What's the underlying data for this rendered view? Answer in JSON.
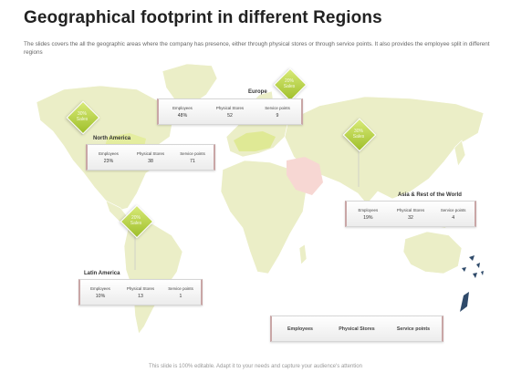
{
  "title": "Geographical footprint in different Regions",
  "subtitle": "The slides covers the all the geographic areas where the company has presence, either through physical stores or through service points. It also provides the employee split in different regions",
  "colors": {
    "map_land": "#ebeec7",
    "map_highlight_green": "#dfe995",
    "map_highlight_pink": "#f7d7d3",
    "badge_green": "#b5d13f"
  },
  "regions": {
    "europe": {
      "name": "Europe",
      "badge_line1": "20%",
      "badge_line2": "Sales",
      "headers": [
        "Employees",
        "Physical Stores",
        "Service points"
      ],
      "values": [
        "48%",
        "52",
        "9"
      ]
    },
    "north_america": {
      "name": "North America",
      "badge_line1": "30%",
      "badge_line2": "Sales",
      "headers": [
        "Employees",
        "Physical Stores",
        "Service points"
      ],
      "values": [
        "23%",
        "38",
        "71"
      ]
    },
    "asia": {
      "name": "Asia & Rest of the World",
      "badge_line1": "30%",
      "badge_line2": "Sales",
      "headers": [
        "Employees",
        "Physical Stores",
        "Service points"
      ],
      "values": [
        "19%",
        "32",
        "4"
      ]
    },
    "latin_america": {
      "name": "Latin America",
      "badge_line1": "20%",
      "badge_line2": "Sales",
      "headers": [
        "Employees",
        "Physical Stores",
        "Service points"
      ],
      "values": [
        "10%",
        "13",
        "1"
      ]
    }
  },
  "legend": [
    "Employees",
    "Physical Stores",
    "Service points"
  ],
  "footer": "This slide is 100% editable. Adapt it to your needs and capture your audience's attention"
}
